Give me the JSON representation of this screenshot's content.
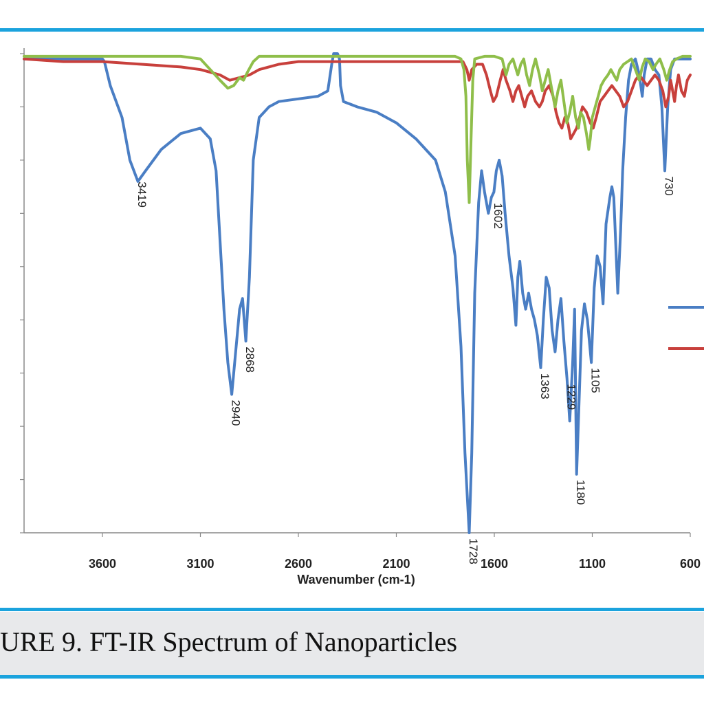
{
  "caption": "URE 9. FT-IR Spectrum of Nanoparticles",
  "colors": {
    "frame": "#1ba3dd",
    "blue": "#4a7ec4",
    "red": "#c8403c",
    "green": "#8fbe4a"
  },
  "chart_data": {
    "type": "line",
    "title": "",
    "xlabel": "Wavenumber (cm-1)",
    "ylabel": "",
    "xlim": [
      4000,
      600
    ],
    "ylim": [
      0.1,
      1.0
    ],
    "xticks": [
      3600,
      3100,
      2600,
      2100,
      1600,
      1100,
      600
    ],
    "xtick_labels": [
      "3600",
      "3100",
      "2600",
      "2100",
      "1600",
      "1100",
      "600"
    ],
    "yticks": [
      0.1,
      0.2,
      0.3,
      0.4,
      0.5,
      0.6,
      0.7,
      0.8,
      0.9,
      1.0
    ],
    "peak_labels": [
      {
        "text": "3419",
        "x": 3419,
        "y": 0.77
      },
      {
        "text": "2940",
        "x": 2940,
        "y": 0.36
      },
      {
        "text": "2868",
        "x": 2868,
        "y": 0.46
      },
      {
        "text": "1728",
        "x": 1728,
        "y": 0.1
      },
      {
        "text": "1602",
        "x": 1602,
        "y": 0.73
      },
      {
        "text": "1363",
        "x": 1363,
        "y": 0.41
      },
      {
        "text": "1229",
        "x": 1229,
        "y": 0.39
      },
      {
        "text": "1180",
        "x": 1180,
        "y": 0.21
      },
      {
        "text": "1105",
        "x": 1105,
        "y": 0.42
      },
      {
        "text": "730",
        "x": 730,
        "y": 0.78
      }
    ],
    "series": [
      {
        "color": "#4a7ec4",
        "points": [
          [
            4000,
            0.99
          ],
          [
            3800,
            0.99
          ],
          [
            3600,
            0.99
          ],
          [
            3590,
            0.985
          ],
          [
            3560,
            0.94
          ],
          [
            3500,
            0.88
          ],
          [
            3460,
            0.8
          ],
          [
            3419,
            0.76
          ],
          [
            3380,
            0.78
          ],
          [
            3300,
            0.82
          ],
          [
            3200,
            0.85
          ],
          [
            3100,
            0.86
          ],
          [
            3050,
            0.84
          ],
          [
            3020,
            0.78
          ],
          [
            3000,
            0.65
          ],
          [
            2980,
            0.52
          ],
          [
            2960,
            0.42
          ],
          [
            2940,
            0.36
          ],
          [
            2920,
            0.44
          ],
          [
            2900,
            0.52
          ],
          [
            2885,
            0.54
          ],
          [
            2868,
            0.46
          ],
          [
            2850,
            0.58
          ],
          [
            2830,
            0.8
          ],
          [
            2800,
            0.88
          ],
          [
            2750,
            0.9
          ],
          [
            2700,
            0.91
          ],
          [
            2600,
            0.915
          ],
          [
            2500,
            0.92
          ],
          [
            2450,
            0.93
          ],
          [
            2430,
            0.98
          ],
          [
            2420,
            1.0
          ],
          [
            2400,
            1.0
          ],
          [
            2390,
            0.99
          ],
          [
            2385,
            0.94
          ],
          [
            2370,
            0.91
          ],
          [
            2300,
            0.9
          ],
          [
            2200,
            0.89
          ],
          [
            2100,
            0.87
          ],
          [
            2000,
            0.84
          ],
          [
            1900,
            0.8
          ],
          [
            1850,
            0.74
          ],
          [
            1800,
            0.62
          ],
          [
            1770,
            0.45
          ],
          [
            1750,
            0.25
          ],
          [
            1728,
            0.1
          ],
          [
            1715,
            0.25
          ],
          [
            1700,
            0.55
          ],
          [
            1680,
            0.72
          ],
          [
            1665,
            0.78
          ],
          [
            1650,
            0.74
          ],
          [
            1630,
            0.7
          ],
          [
            1615,
            0.73
          ],
          [
            1602,
            0.74
          ],
          [
            1590,
            0.78
          ],
          [
            1575,
            0.8
          ],
          [
            1560,
            0.77
          ],
          [
            1545,
            0.7
          ],
          [
            1525,
            0.62
          ],
          [
            1505,
            0.56
          ],
          [
            1490,
            0.49
          ],
          [
            1480,
            0.58
          ],
          [
            1470,
            0.61
          ],
          [
            1455,
            0.55
          ],
          [
            1440,
            0.52
          ],
          [
            1425,
            0.55
          ],
          [
            1410,
            0.52
          ],
          [
            1395,
            0.5
          ],
          [
            1380,
            0.47
          ],
          [
            1363,
            0.41
          ],
          [
            1350,
            0.5
          ],
          [
            1335,
            0.58
          ],
          [
            1320,
            0.56
          ],
          [
            1305,
            0.48
          ],
          [
            1290,
            0.44
          ],
          [
            1275,
            0.5
          ],
          [
            1260,
            0.54
          ],
          [
            1245,
            0.46
          ],
          [
            1229,
            0.39
          ],
          [
            1215,
            0.31
          ],
          [
            1200,
            0.42
          ],
          [
            1190,
            0.52
          ],
          [
            1180,
            0.21
          ],
          [
            1170,
            0.32
          ],
          [
            1155,
            0.48
          ],
          [
            1140,
            0.53
          ],
          [
            1125,
            0.5
          ],
          [
            1105,
            0.42
          ],
          [
            1090,
            0.56
          ],
          [
            1075,
            0.62
          ],
          [
            1060,
            0.6
          ],
          [
            1045,
            0.53
          ],
          [
            1030,
            0.68
          ],
          [
            1010,
            0.73
          ],
          [
            1000,
            0.75
          ],
          [
            990,
            0.73
          ],
          [
            970,
            0.55
          ],
          [
            955,
            0.67
          ],
          [
            945,
            0.78
          ],
          [
            930,
            0.88
          ],
          [
            915,
            0.95
          ],
          [
            900,
            0.98
          ],
          [
            880,
            0.99
          ],
          [
            860,
            0.96
          ],
          [
            845,
            0.92
          ],
          [
            835,
            0.96
          ],
          [
            820,
            0.99
          ],
          [
            800,
            0.99
          ],
          [
            780,
            0.97
          ],
          [
            760,
            0.96
          ],
          [
            745,
            0.9
          ],
          [
            730,
            0.78
          ],
          [
            715,
            0.9
          ],
          [
            700,
            0.97
          ],
          [
            680,
            0.99
          ],
          [
            600,
            0.99
          ]
        ]
      },
      {
        "color": "#c8403c",
        "points": [
          [
            4000,
            0.99
          ],
          [
            3800,
            0.985
          ],
          [
            3600,
            0.985
          ],
          [
            3400,
            0.98
          ],
          [
            3200,
            0.975
          ],
          [
            3100,
            0.97
          ],
          [
            3050,
            0.965
          ],
          [
            3000,
            0.96
          ],
          [
            2950,
            0.95
          ],
          [
            2900,
            0.955
          ],
          [
            2850,
            0.96
          ],
          [
            2800,
            0.97
          ],
          [
            2700,
            0.98
          ],
          [
            2600,
            0.985
          ],
          [
            2400,
            0.985
          ],
          [
            2000,
            0.985
          ],
          [
            1800,
            0.985
          ],
          [
            1760,
            0.985
          ],
          [
            1740,
            0.97
          ],
          [
            1728,
            0.95
          ],
          [
            1715,
            0.97
          ],
          [
            1690,
            0.98
          ],
          [
            1660,
            0.98
          ],
          [
            1640,
            0.96
          ],
          [
            1620,
            0.93
          ],
          [
            1605,
            0.91
          ],
          [
            1590,
            0.92
          ],
          [
            1570,
            0.95
          ],
          [
            1555,
            0.97
          ],
          [
            1540,
            0.95
          ],
          [
            1520,
            0.93
          ],
          [
            1505,
            0.91
          ],
          [
            1490,
            0.93
          ],
          [
            1475,
            0.94
          ],
          [
            1460,
            0.92
          ],
          [
            1445,
            0.9
          ],
          [
            1430,
            0.92
          ],
          [
            1410,
            0.93
          ],
          [
            1390,
            0.91
          ],
          [
            1370,
            0.9
          ],
          [
            1355,
            0.91
          ],
          [
            1340,
            0.93
          ],
          [
            1320,
            0.94
          ],
          [
            1300,
            0.92
          ],
          [
            1285,
            0.89
          ],
          [
            1270,
            0.87
          ],
          [
            1255,
            0.86
          ],
          [
            1240,
            0.88
          ],
          [
            1225,
            0.87
          ],
          [
            1210,
            0.84
          ],
          [
            1195,
            0.85
          ],
          [
            1180,
            0.86
          ],
          [
            1165,
            0.88
          ],
          [
            1150,
            0.9
          ],
          [
            1130,
            0.89
          ],
          [
            1110,
            0.87
          ],
          [
            1095,
            0.86
          ],
          [
            1080,
            0.88
          ],
          [
            1060,
            0.91
          ],
          [
            1040,
            0.92
          ],
          [
            1020,
            0.93
          ],
          [
            1000,
            0.94
          ],
          [
            980,
            0.93
          ],
          [
            960,
            0.92
          ],
          [
            940,
            0.9
          ],
          [
            920,
            0.91
          ],
          [
            900,
            0.93
          ],
          [
            880,
            0.95
          ],
          [
            860,
            0.96
          ],
          [
            840,
            0.95
          ],
          [
            820,
            0.94
          ],
          [
            800,
            0.95
          ],
          [
            780,
            0.96
          ],
          [
            760,
            0.95
          ],
          [
            740,
            0.93
          ],
          [
            725,
            0.9
          ],
          [
            710,
            0.92
          ],
          [
            700,
            0.95
          ],
          [
            690,
            0.93
          ],
          [
            680,
            0.91
          ],
          [
            670,
            0.94
          ],
          [
            660,
            0.96
          ],
          [
            645,
            0.93
          ],
          [
            630,
            0.92
          ],
          [
            615,
            0.95
          ],
          [
            600,
            0.96
          ]
        ]
      },
      {
        "color": "#8fbe4a",
        "points": [
          [
            4000,
            0.995
          ],
          [
            3800,
            0.995
          ],
          [
            3600,
            0.995
          ],
          [
            3400,
            0.995
          ],
          [
            3200,
            0.995
          ],
          [
            3100,
            0.99
          ],
          [
            3050,
            0.97
          ],
          [
            3000,
            0.95
          ],
          [
            2960,
            0.935
          ],
          [
            2930,
            0.94
          ],
          [
            2900,
            0.955
          ],
          [
            2880,
            0.95
          ],
          [
            2860,
            0.965
          ],
          [
            2830,
            0.985
          ],
          [
            2800,
            0.995
          ],
          [
            2400,
            0.995
          ],
          [
            2000,
            0.995
          ],
          [
            1800,
            0.995
          ],
          [
            1770,
            0.99
          ],
          [
            1755,
            0.97
          ],
          [
            1745,
            0.92
          ],
          [
            1738,
            0.8
          ],
          [
            1728,
            0.72
          ],
          [
            1718,
            0.85
          ],
          [
            1710,
            0.95
          ],
          [
            1700,
            0.99
          ],
          [
            1650,
            0.995
          ],
          [
            1600,
            0.995
          ],
          [
            1560,
            0.99
          ],
          [
            1540,
            0.96
          ],
          [
            1525,
            0.98
          ],
          [
            1505,
            0.99
          ],
          [
            1480,
            0.96
          ],
          [
            1465,
            0.98
          ],
          [
            1450,
            0.99
          ],
          [
            1435,
            0.96
          ],
          [
            1420,
            0.94
          ],
          [
            1405,
            0.97
          ],
          [
            1390,
            0.99
          ],
          [
            1370,
            0.96
          ],
          [
            1355,
            0.93
          ],
          [
            1340,
            0.95
          ],
          [
            1325,
            0.97
          ],
          [
            1310,
            0.94
          ],
          [
            1290,
            0.9
          ],
          [
            1275,
            0.93
          ],
          [
            1260,
            0.95
          ],
          [
            1245,
            0.91
          ],
          [
            1230,
            0.87
          ],
          [
            1215,
            0.89
          ],
          [
            1200,
            0.92
          ],
          [
            1185,
            0.88
          ],
          [
            1170,
            0.86
          ],
          [
            1160,
            0.89
          ],
          [
            1145,
            0.88
          ],
          [
            1130,
            0.85
          ],
          [
            1118,
            0.82
          ],
          [
            1110,
            0.84
          ],
          [
            1100,
            0.88
          ],
          [
            1085,
            0.9
          ],
          [
            1070,
            0.92
          ],
          [
            1055,
            0.94
          ],
          [
            1040,
            0.95
          ],
          [
            1020,
            0.96
          ],
          [
            1005,
            0.97
          ],
          [
            990,
            0.96
          ],
          [
            975,
            0.95
          ],
          [
            960,
            0.97
          ],
          [
            940,
            0.98
          ],
          [
            920,
            0.985
          ],
          [
            900,
            0.99
          ],
          [
            880,
            0.97
          ],
          [
            860,
            0.95
          ],
          [
            845,
            0.975
          ],
          [
            830,
            0.99
          ],
          [
            810,
            0.985
          ],
          [
            790,
            0.97
          ],
          [
            775,
            0.98
          ],
          [
            755,
            0.99
          ],
          [
            735,
            0.97
          ],
          [
            720,
            0.95
          ],
          [
            705,
            0.97
          ],
          [
            690,
            0.985
          ],
          [
            670,
            0.99
          ],
          [
            640,
            0.995
          ],
          [
            600,
            0.995
          ]
        ]
      }
    ]
  }
}
